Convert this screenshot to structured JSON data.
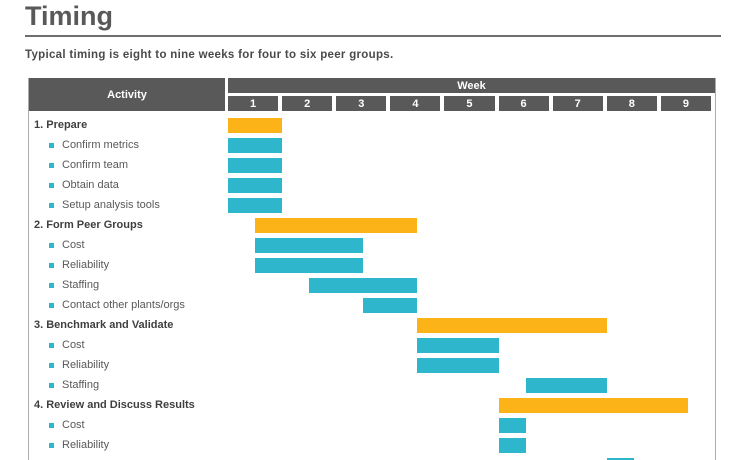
{
  "page": {
    "title": "Timing",
    "subtitle": "Typical timing is eight to nine weeks for four to six peer groups."
  },
  "colors": {
    "header_bg": "#595959",
    "header_text": "#ffffff",
    "orange": "#fbb318",
    "cyan": "#2db6cc",
    "section_text": "#3f3f3f",
    "item_text": "#595959",
    "title_text": "#595959",
    "rule": "#6e6e6e",
    "table_border": "#ababab",
    "background": "#ffffff"
  },
  "chart_data": {
    "type": "gantt",
    "title": "Timing",
    "activity_header": "Activity",
    "week_header": "Week",
    "week_labels": [
      "1",
      "2",
      "3",
      "4",
      "5",
      "6",
      "7",
      "8",
      "9"
    ],
    "axis": {
      "unit": "week",
      "min": 1,
      "max": 10
    },
    "legend": {
      "section_bar_color": "orange",
      "item_bar_color": "cyan"
    },
    "rows": [
      {
        "label": "1. Prepare",
        "level": "section",
        "start": 1,
        "end": 2,
        "color": "orange"
      },
      {
        "label": "Confirm metrics",
        "level": "item",
        "start": 1,
        "end": 2,
        "color": "cyan"
      },
      {
        "label": "Confirm team",
        "level": "item",
        "start": 1,
        "end": 2,
        "color": "cyan"
      },
      {
        "label": "Obtain data",
        "level": "item",
        "start": 1,
        "end": 2,
        "color": "cyan"
      },
      {
        "label": "Setup analysis tools",
        "level": "item",
        "start": 1,
        "end": 2,
        "color": "cyan"
      },
      {
        "label": "2. Form Peer Groups",
        "level": "section",
        "start": 1.5,
        "end": 4.5,
        "color": "orange"
      },
      {
        "label": "Cost",
        "level": "item",
        "start": 1.5,
        "end": 3.5,
        "color": "cyan"
      },
      {
        "label": "Reliability",
        "level": "item",
        "start": 1.5,
        "end": 3.5,
        "color": "cyan"
      },
      {
        "label": "Staffing",
        "level": "item",
        "start": 2.5,
        "end": 4.5,
        "color": "cyan"
      },
      {
        "label": "Contact other plants/orgs",
        "level": "item",
        "start": 3.5,
        "end": 4.5,
        "color": "cyan"
      },
      {
        "label": "3. Benchmark and Validate",
        "level": "section",
        "start": 4.5,
        "end": 8,
        "color": "orange"
      },
      {
        "label": "Cost",
        "level": "item",
        "start": 4.5,
        "end": 6,
        "color": "cyan"
      },
      {
        "label": "Reliability",
        "level": "item",
        "start": 4.5,
        "end": 6,
        "color": "cyan"
      },
      {
        "label": "Staffing",
        "level": "item",
        "start": 6.5,
        "end": 8,
        "color": "cyan"
      },
      {
        "label": "4. Review and Discuss Results",
        "level": "section",
        "start": 6,
        "end": 9.5,
        "color": "orange"
      },
      {
        "label": "Cost",
        "level": "item",
        "start": 6,
        "end": 6.5,
        "color": "cyan"
      },
      {
        "label": "Reliability",
        "level": "item",
        "start": 6,
        "end": 6.5,
        "color": "cyan"
      },
      {
        "label": "",
        "level": "item",
        "start": 8,
        "end": 8.5,
        "color": "cyan"
      }
    ]
  }
}
